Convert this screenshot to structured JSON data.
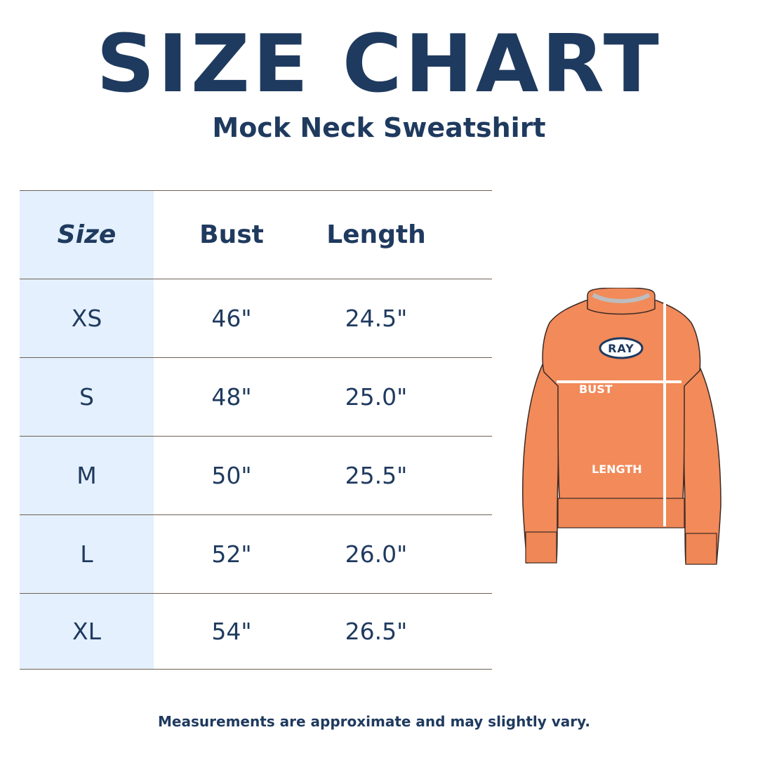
{
  "header": {
    "title": "SIZE CHART",
    "subtitle": "Mock Neck Sweatshirt"
  },
  "table": {
    "columns": [
      "Size",
      "Bust",
      "Length"
    ],
    "rows": [
      {
        "size": "XS",
        "bust": "46\"",
        "length": "24.5\""
      },
      {
        "size": "S",
        "bust": "48\"",
        "length": "25.0\""
      },
      {
        "size": "M",
        "bust": "50\"",
        "length": "25.5\""
      },
      {
        "size": "L",
        "bust": "52\"",
        "length": "26.0\""
      },
      {
        "size": "XL",
        "bust": "54\"",
        "length": "26.5\""
      }
    ]
  },
  "illustration": {
    "logo_text": "RAY",
    "bust_label": "BUST",
    "length_label": "LENGTH"
  },
  "footnote": "Measurements are approximate and may slightly vary.",
  "colors": {
    "navy": "#1f3a5f",
    "size_column_bg": "#e4f0fd",
    "sweatshirt": "#f28a5a",
    "divider": "#6d6256"
  }
}
